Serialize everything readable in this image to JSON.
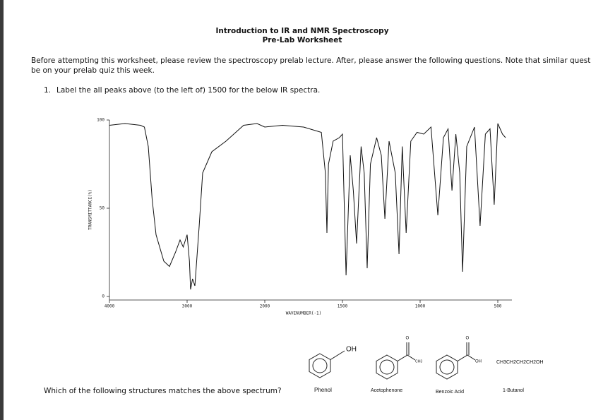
{
  "header": {
    "title": "Introduction to IR and NMR Spectroscopy",
    "subtitle": "Pre-Lab Worksheet"
  },
  "intro": [
    "Before attempting this worksheet, please review the spectroscopy prelab lecture. After, please answer the following questions. Note that similar questions will",
    "be on your prelab quiz this week."
  ],
  "question1": {
    "number": "1.",
    "text": "Label the all peaks above (to the left of) 1500 for the below IR spectra."
  },
  "chart_data": {
    "type": "line",
    "xlabel": "WAVENUMBER(-1)",
    "ylabel": "TRANSMITTANCE(%)",
    "xlim": [
      4000,
      450
    ],
    "ylim": [
      0,
      100
    ],
    "xticks": [
      4000,
      3000,
      2000,
      1500,
      1000,
      500
    ],
    "yticks": [
      0,
      50,
      100
    ],
    "color": "#111111",
    "x": [
      4000,
      3800,
      3600,
      3550,
      3500,
      3450,
      3400,
      3300,
      3227,
      3150,
      3091,
      3050,
      3000,
      2970,
      2955,
      2930,
      2900,
      2845,
      2800,
      2682,
      2500,
      2273,
      2100,
      2000,
      1886,
      1750,
      1636,
      1610,
      1600,
      1590,
      1560,
      1520,
      1500,
      1477,
      1450,
      1430,
      1409,
      1380,
      1360,
      1341,
      1320,
      1280,
      1250,
      1227,
      1200,
      1160,
      1136,
      1115,
      1090,
      1060,
      1020,
      977,
      930,
      886,
      850,
      820,
      795,
      770,
      745,
      727,
      700,
      650,
      614,
      580,
      550,
      523,
      500,
      470,
      450
    ],
    "values": [
      97,
      98,
      97,
      96,
      85,
      55,
      35,
      20,
      17,
      25,
      32,
      28,
      35,
      20,
      4,
      10,
      6,
      40,
      70,
      82,
      88,
      97,
      98,
      96,
      97,
      96,
      93,
      70,
      36,
      75,
      88,
      90,
      92,
      12,
      80,
      60,
      30,
      85,
      70,
      16,
      75,
      90,
      80,
      44,
      88,
      70,
      24,
      85,
      36,
      88,
      93,
      92,
      96,
      46,
      90,
      95,
      60,
      92,
      70,
      14,
      85,
      96,
      40,
      92,
      95,
      52,
      98,
      92,
      90
    ]
  },
  "question2": "Which of the following structures matches the above spectrum?",
  "structures": {
    "phenol": {
      "group": "OH",
      "name": "Phenol"
    },
    "acetophenone": {
      "oxygen": "O",
      "group": "CH3",
      "name": "Acetophenone"
    },
    "benzoic_acid": {
      "oxygen": "O",
      "group": "OH",
      "name": "Benzoic Acid"
    },
    "butanol": {
      "formula": "CH3CH2CH2CH2OH",
      "name": "1-Butanol"
    }
  }
}
